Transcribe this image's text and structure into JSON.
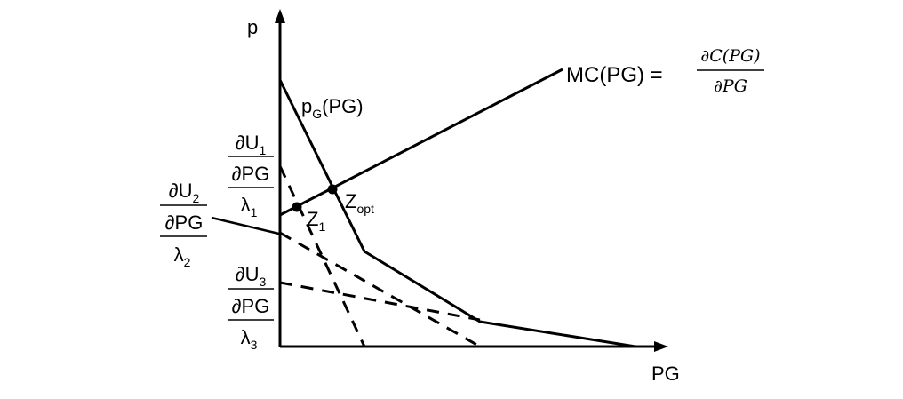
{
  "axes": {
    "y_label": "p",
    "x_label": "PG"
  },
  "curves": {
    "mc": {
      "label_prefix": "MC(PG) = ",
      "frac_num": "∂C(PG)",
      "frac_den": "∂PG"
    },
    "demand": {
      "p": "p",
      "sub": "G",
      "suffix": "(PG)"
    }
  },
  "fractions": [
    {
      "num_base": "∂U",
      "num_sub": "1",
      "mid": "∂PG",
      "den_base": "λ",
      "den_sub": "1"
    },
    {
      "num_base": "∂U",
      "num_sub": "2",
      "mid": "∂PG",
      "den_base": "λ",
      "den_sub": "2"
    },
    {
      "num_base": "∂U",
      "num_sub": "3",
      "mid": "∂PG",
      "den_base": "λ",
      "den_sub": "3"
    }
  ],
  "points": {
    "z_opt": {
      "base": "Z",
      "sub": "opt"
    },
    "z1": {
      "base": "Z",
      "sub": "1"
    }
  }
}
